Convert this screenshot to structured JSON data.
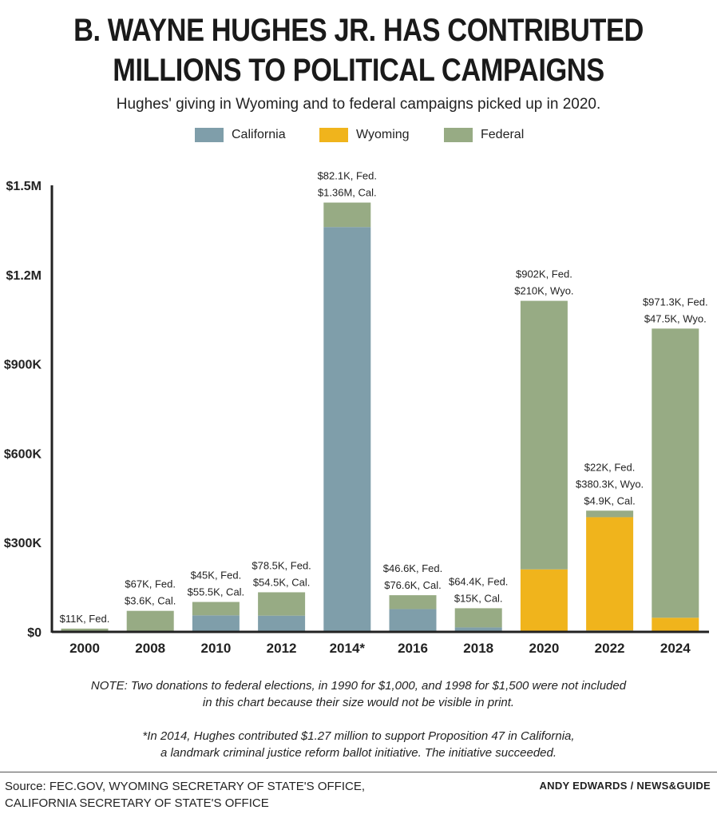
{
  "header": {
    "title_line1": "B. WAYNE HUGHES JR. HAS CONTRIBUTED",
    "title_line2": "MILLIONS TO POLITICAL CAMPAIGNS",
    "subtitle": "Hughes' giving in Wyoming and to federal campaigns picked up in 2020."
  },
  "chart_data": {
    "type": "bar",
    "stacked": true,
    "title": "B. WAYNE HUGHES JR. HAS CONTRIBUTED MILLIONS TO POLITICAL CAMPAIGNS",
    "subtitle": "Hughes' giving in Wyoming and to federal campaigns picked up in 2020.",
    "legend_position": "top",
    "grid": false,
    "ylim": [
      0,
      1500000
    ],
    "y_ticks": [
      0,
      300000,
      600000,
      900000,
      1200000,
      1500000
    ],
    "y_tick_labels": [
      "$0",
      "$300K",
      "$600K",
      "$900K",
      "$1.2M",
      "$1.5M"
    ],
    "categories": [
      "2000",
      "2008",
      "2010",
      "2012",
      "2014*",
      "2016",
      "2018",
      "2020",
      "2022",
      "2024"
    ],
    "series": [
      {
        "name": "California",
        "color": "#7f9eaa",
        "values": [
          0,
          3600,
          55500,
          54500,
          1360000,
          76600,
          15000,
          0,
          4900,
          0
        ]
      },
      {
        "name": "Wyoming",
        "color": "#f0b41c",
        "values": [
          0,
          0,
          0,
          0,
          0,
          0,
          0,
          210000,
          380300,
          47500
        ]
      },
      {
        "name": "Federal",
        "color": "#97ab84",
        "values": [
          11000,
          67000,
          45000,
          78500,
          82100,
          46600,
          64400,
          902000,
          22000,
          971300
        ]
      }
    ],
    "data_labels": [
      [
        "$11K, Fed."
      ],
      [
        "$67K, Fed.",
        "$3.6K, Cal."
      ],
      [
        "$45K, Fed.",
        "$55.5K, Cal."
      ],
      [
        "$78.5K, Fed.",
        "$54.5K, Cal."
      ],
      [
        "$82.1K, Fed.",
        "$1.36M, Cal."
      ],
      [
        "$46.6K, Fed.",
        "$76.6K, Cal."
      ],
      [
        "$64.4K, Fed.",
        "$15K, Cal."
      ],
      [
        "$902K, Fed.",
        "$210K, Wyo."
      ],
      [
        "$22K, Fed.",
        "$380.3K, Wyo.",
        "$4.9K, Cal."
      ],
      [
        "$971.3K, Fed.",
        "$47.5K, Wyo."
      ]
    ]
  },
  "notes": {
    "note_line1": "NOTE: Two donations to federal elections, in 1990 for $1,000, and 1998 for $1,500 were not included",
    "note_line2": "in this chart because their size would not be visible in print.",
    "footnote_line1": "*In 2014, Hughes contributed $1.27 million to support Proposition 47 in California,",
    "footnote_line2": "a landmark criminal justice reform ballot initiative. The initiative succeeded."
  },
  "footer": {
    "source_line1": "Source: FEC.GOV, WYOMING SECRETARY OF STATE'S OFFICE,",
    "source_line2": "CALIFORNIA SECRETARY OF STATE'S OFFICE",
    "credit": "ANDY EDWARDS / NEWS&GUIDE"
  }
}
